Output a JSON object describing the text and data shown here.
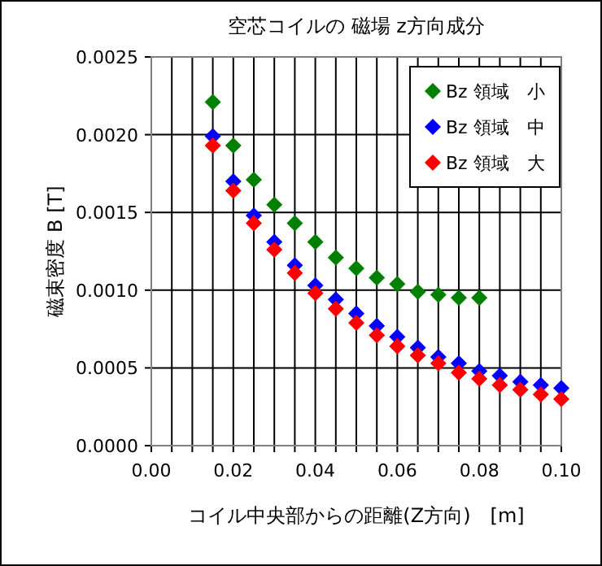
{
  "chart_data": {
    "type": "scatter",
    "title": "空芯コイルの 磁場 z方向成分",
    "xlabel": "コイル中央部からの距離(Z方向)　[m]",
    "ylabel": "磁束密度 B [T]",
    "xlim": [
      0,
      0.1
    ],
    "ylim": [
      0,
      0.0025
    ],
    "xticks": [
      {
        "value": 0,
        "label": "0.00"
      },
      {
        "value": 0.005,
        "label": null
      },
      {
        "value": 0.01,
        "label": null
      },
      {
        "value": 0.015,
        "label": null
      },
      {
        "value": 0.02,
        "label": "0.02"
      },
      {
        "value": 0.025,
        "label": null
      },
      {
        "value": 0.03,
        "label": null
      },
      {
        "value": 0.035,
        "label": null
      },
      {
        "value": 0.04,
        "label": "0.04"
      },
      {
        "value": 0.045,
        "label": null
      },
      {
        "value": 0.05,
        "label": null
      },
      {
        "value": 0.055,
        "label": null
      },
      {
        "value": 0.06,
        "label": "0.06"
      },
      {
        "value": 0.065,
        "label": null
      },
      {
        "value": 0.07,
        "label": null
      },
      {
        "value": 0.075,
        "label": null
      },
      {
        "value": 0.08,
        "label": "0.08"
      },
      {
        "value": 0.085,
        "label": null
      },
      {
        "value": 0.09,
        "label": null
      },
      {
        "value": 0.095,
        "label": null
      },
      {
        "value": 0.1,
        "label": "0.10"
      }
    ],
    "yticks": [
      {
        "value": 0,
        "label": "0.0000"
      },
      {
        "value": 0.0005,
        "label": "0.0005"
      },
      {
        "value": 0.001,
        "label": "0.0010"
      },
      {
        "value": 0.0015,
        "label": "0.0015"
      },
      {
        "value": 0.002,
        "label": "0.0020"
      },
      {
        "value": 0.0025,
        "label": "0.0025"
      }
    ],
    "grid": true,
    "legend": "top right",
    "marker": "diamond",
    "series": [
      {
        "name": "Bz 領域　小",
        "color": "#008000",
        "x": [
          0.015,
          0.02,
          0.025,
          0.03,
          0.035,
          0.04,
          0.045,
          0.05,
          0.055,
          0.06,
          0.065,
          0.07,
          0.075,
          0.08
        ],
        "values": [
          0.00221,
          0.00193,
          0.00171,
          0.00155,
          0.00143,
          0.00131,
          0.00121,
          0.00114,
          0.00108,
          0.00104,
          0.00099,
          0.00097,
          0.00095,
          0.00095
        ]
      },
      {
        "name": "Bz 領域　中",
        "color": "#0000ff",
        "x": [
          0.015,
          0.02,
          0.025,
          0.03,
          0.035,
          0.04,
          0.045,
          0.05,
          0.055,
          0.06,
          0.065,
          0.07,
          0.075,
          0.08,
          0.085,
          0.09,
          0.095,
          0.1
        ],
        "values": [
          0.00199,
          0.0017,
          0.00148,
          0.00131,
          0.00116,
          0.00103,
          0.00094,
          0.00085,
          0.00077,
          0.0007,
          0.00063,
          0.00057,
          0.00053,
          0.00048,
          0.00045,
          0.00041,
          0.00039,
          0.00037
        ]
      },
      {
        "name": "Bz 領域　大",
        "color": "#ff0000",
        "x": [
          0.015,
          0.02,
          0.025,
          0.03,
          0.035,
          0.04,
          0.045,
          0.05,
          0.055,
          0.06,
          0.065,
          0.07,
          0.075,
          0.08,
          0.085,
          0.09,
          0.095,
          0.1
        ],
        "values": [
          0.00193,
          0.00164,
          0.00143,
          0.00126,
          0.00111,
          0.00098,
          0.00088,
          0.00079,
          0.00071,
          0.00064,
          0.00058,
          0.00053,
          0.00047,
          0.00043,
          0.00039,
          0.00036,
          0.00033,
          0.0003
        ]
      }
    ]
  }
}
